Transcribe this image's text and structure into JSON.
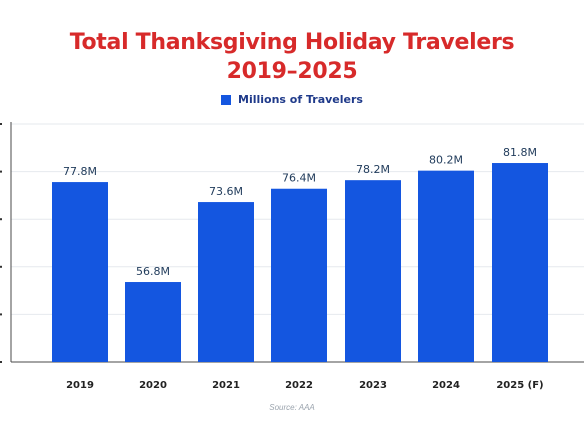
{
  "title_line1": "Total Thanksgiving Holiday Travelers",
  "title_line2": "2019–2025",
  "legend_label": "Millions of Travelers",
  "source": "Source: AAA",
  "colors": {
    "title": "#d72a2a",
    "bar": "#1456e0",
    "legend_text": "#1f3a8a",
    "label_text": "#1f3a5a"
  },
  "chart_data": {
    "type": "bar",
    "categories": [
      "2019",
      "2020",
      "2021",
      "2022",
      "2023",
      "2024",
      "2025 (F)"
    ],
    "series": [
      {
        "name": "Millions of Travelers",
        "values": [
          77.8,
          56.8,
          73.6,
          76.4,
          78.2,
          80.2,
          81.8
        ],
        "labels": [
          "77.8M",
          "56.8M",
          "73.6M",
          "76.4M",
          "78.2M",
          "80.2M",
          "81.8M"
        ]
      }
    ],
    "ylim": [
      40,
      90
    ],
    "grid": true,
    "legend_position": "top-center"
  }
}
